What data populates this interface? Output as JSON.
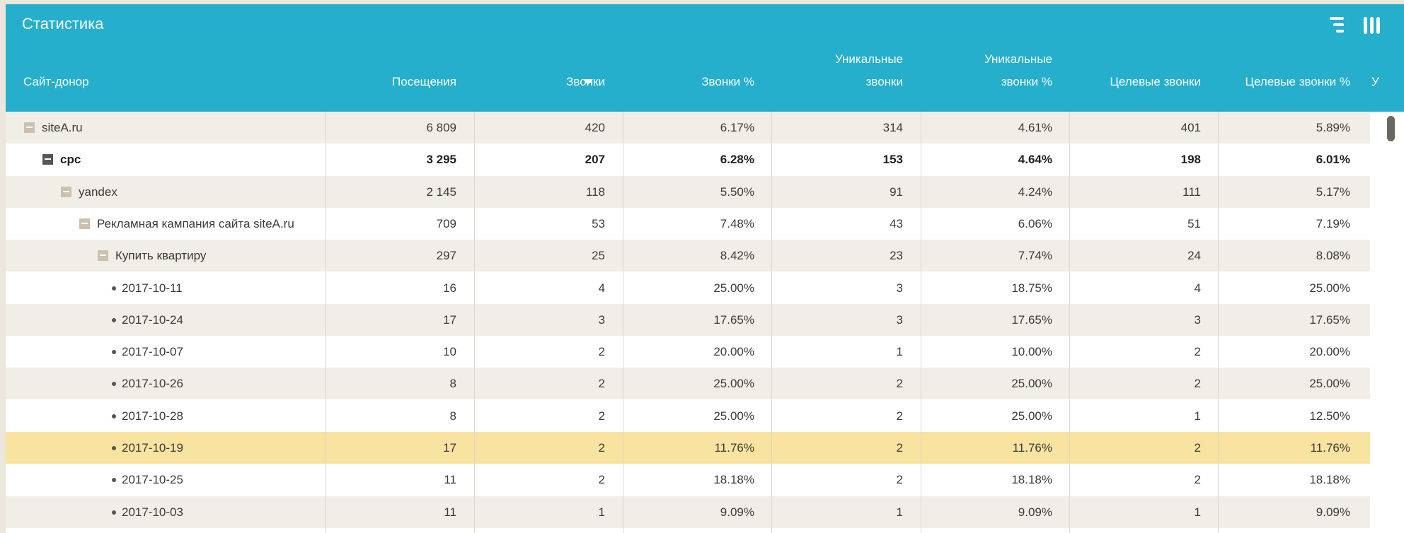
{
  "header": {
    "title": "Статистика",
    "icons": [
      "tree-view-icon",
      "columns-icon"
    ]
  },
  "columns": [
    {
      "lines": [
        "",
        "Сайт-донор"
      ]
    },
    {
      "lines": [
        "",
        "Посещения"
      ]
    },
    {
      "lines": [
        "",
        "Звонки"
      ],
      "sorted": "desc"
    },
    {
      "lines": [
        "",
        "Звонки %"
      ]
    },
    {
      "lines": [
        "Уникальные",
        "звонки"
      ]
    },
    {
      "lines": [
        "Уникальные",
        "звонки %"
      ]
    },
    {
      "lines": [
        "",
        "Целевые звонки"
      ]
    },
    {
      "lines": [
        "",
        "Целевые звонки %"
      ]
    },
    {
      "lines": [
        "",
        "У"
      ]
    }
  ],
  "rows": [
    {
      "name": "siteA.ru",
      "type": "group",
      "level": 0,
      "bold": false,
      "highlight": false,
      "values": [
        "6 809",
        "420",
        "6.17%",
        "314",
        "4.61%",
        "401",
        "5.89%"
      ]
    },
    {
      "name": "cpc",
      "type": "group",
      "level": 1,
      "bold": true,
      "highlight": false,
      "values": [
        "3 295",
        "207",
        "6.28%",
        "153",
        "4.64%",
        "198",
        "6.01%"
      ]
    },
    {
      "name": "yandex",
      "type": "group",
      "level": 2,
      "bold": false,
      "highlight": false,
      "values": [
        "2 145",
        "118",
        "5.50%",
        "91",
        "4.24%",
        "111",
        "5.17%"
      ]
    },
    {
      "name": "Рекламная кампания сайта siteA.ru",
      "type": "group",
      "level": 3,
      "bold": false,
      "highlight": false,
      "values": [
        "709",
        "53",
        "7.48%",
        "43",
        "6.06%",
        "51",
        "7.19%"
      ]
    },
    {
      "name": "Купить квартиру",
      "type": "group",
      "level": 4,
      "bold": false,
      "highlight": false,
      "values": [
        "297",
        "25",
        "8.42%",
        "23",
        "7.74%",
        "24",
        "8.08%"
      ]
    },
    {
      "name": "2017-10-11",
      "type": "leaf",
      "level": 5,
      "bold": false,
      "highlight": false,
      "values": [
        "16",
        "4",
        "25.00%",
        "3",
        "18.75%",
        "4",
        "25.00%"
      ]
    },
    {
      "name": "2017-10-24",
      "type": "leaf",
      "level": 5,
      "bold": false,
      "highlight": false,
      "values": [
        "17",
        "3",
        "17.65%",
        "3",
        "17.65%",
        "3",
        "17.65%"
      ]
    },
    {
      "name": "2017-10-07",
      "type": "leaf",
      "level": 5,
      "bold": false,
      "highlight": false,
      "values": [
        "10",
        "2",
        "20.00%",
        "1",
        "10.00%",
        "2",
        "20.00%"
      ]
    },
    {
      "name": "2017-10-26",
      "type": "leaf",
      "level": 5,
      "bold": false,
      "highlight": false,
      "values": [
        "8",
        "2",
        "25.00%",
        "2",
        "25.00%",
        "2",
        "25.00%"
      ]
    },
    {
      "name": "2017-10-28",
      "type": "leaf",
      "level": 5,
      "bold": false,
      "highlight": false,
      "values": [
        "8",
        "2",
        "25.00%",
        "2",
        "25.00%",
        "1",
        "12.50%"
      ]
    },
    {
      "name": "2017-10-19",
      "type": "leaf",
      "level": 5,
      "bold": false,
      "highlight": true,
      "values": [
        "17",
        "2",
        "11.76%",
        "2",
        "11.76%",
        "2",
        "11.76%"
      ]
    },
    {
      "name": "2017-10-25",
      "type": "leaf",
      "level": 5,
      "bold": false,
      "highlight": false,
      "values": [
        "11",
        "2",
        "18.18%",
        "2",
        "18.18%",
        "2",
        "18.18%"
      ]
    },
    {
      "name": "2017-10-03",
      "type": "leaf",
      "level": 5,
      "bold": false,
      "highlight": false,
      "values": [
        "11",
        "1",
        "9.09%",
        "1",
        "9.09%",
        "1",
        "9.09%"
      ]
    }
  ],
  "colors": {
    "header_bg": "#25afcc",
    "row_odd": "#f1eee8",
    "row_even": "#ffffff",
    "row_highlight": "#f9e3a0",
    "toggle": "#ccc0ae",
    "toggle_dark": "#5a5550"
  }
}
